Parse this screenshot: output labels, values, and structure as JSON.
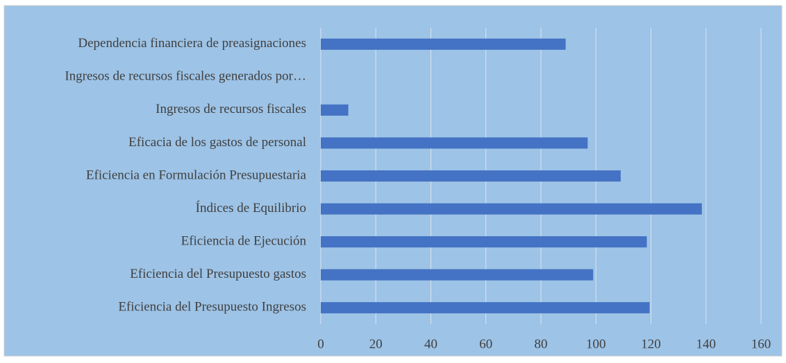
{
  "chart_data": {
    "type": "bar",
    "orientation": "horizontal",
    "categories": [
      "Dependencia financiera de preasignaciones",
      "Ingresos de recursos fiscales generados por…",
      "Ingresos de recursos fiscales",
      "Eficacia de los gastos de personal",
      "Eficiencia en Formulación Presupuestaria",
      "Índices de Equilibrio",
      "Eficiencia de Ejecución",
      "Eficiencia del Presupuesto gastos",
      "Eficiencia del Presupuesto Ingresos"
    ],
    "values": [
      89,
      0,
      10,
      97,
      109,
      138.5,
      118.5,
      99,
      119.5
    ],
    "color": "#4472c4",
    "background": "#9dc3e6",
    "xlim": [
      0,
      160
    ],
    "xticks": [
      0,
      20,
      40,
      60,
      80,
      100,
      120,
      140,
      160
    ],
    "grid": true
  }
}
